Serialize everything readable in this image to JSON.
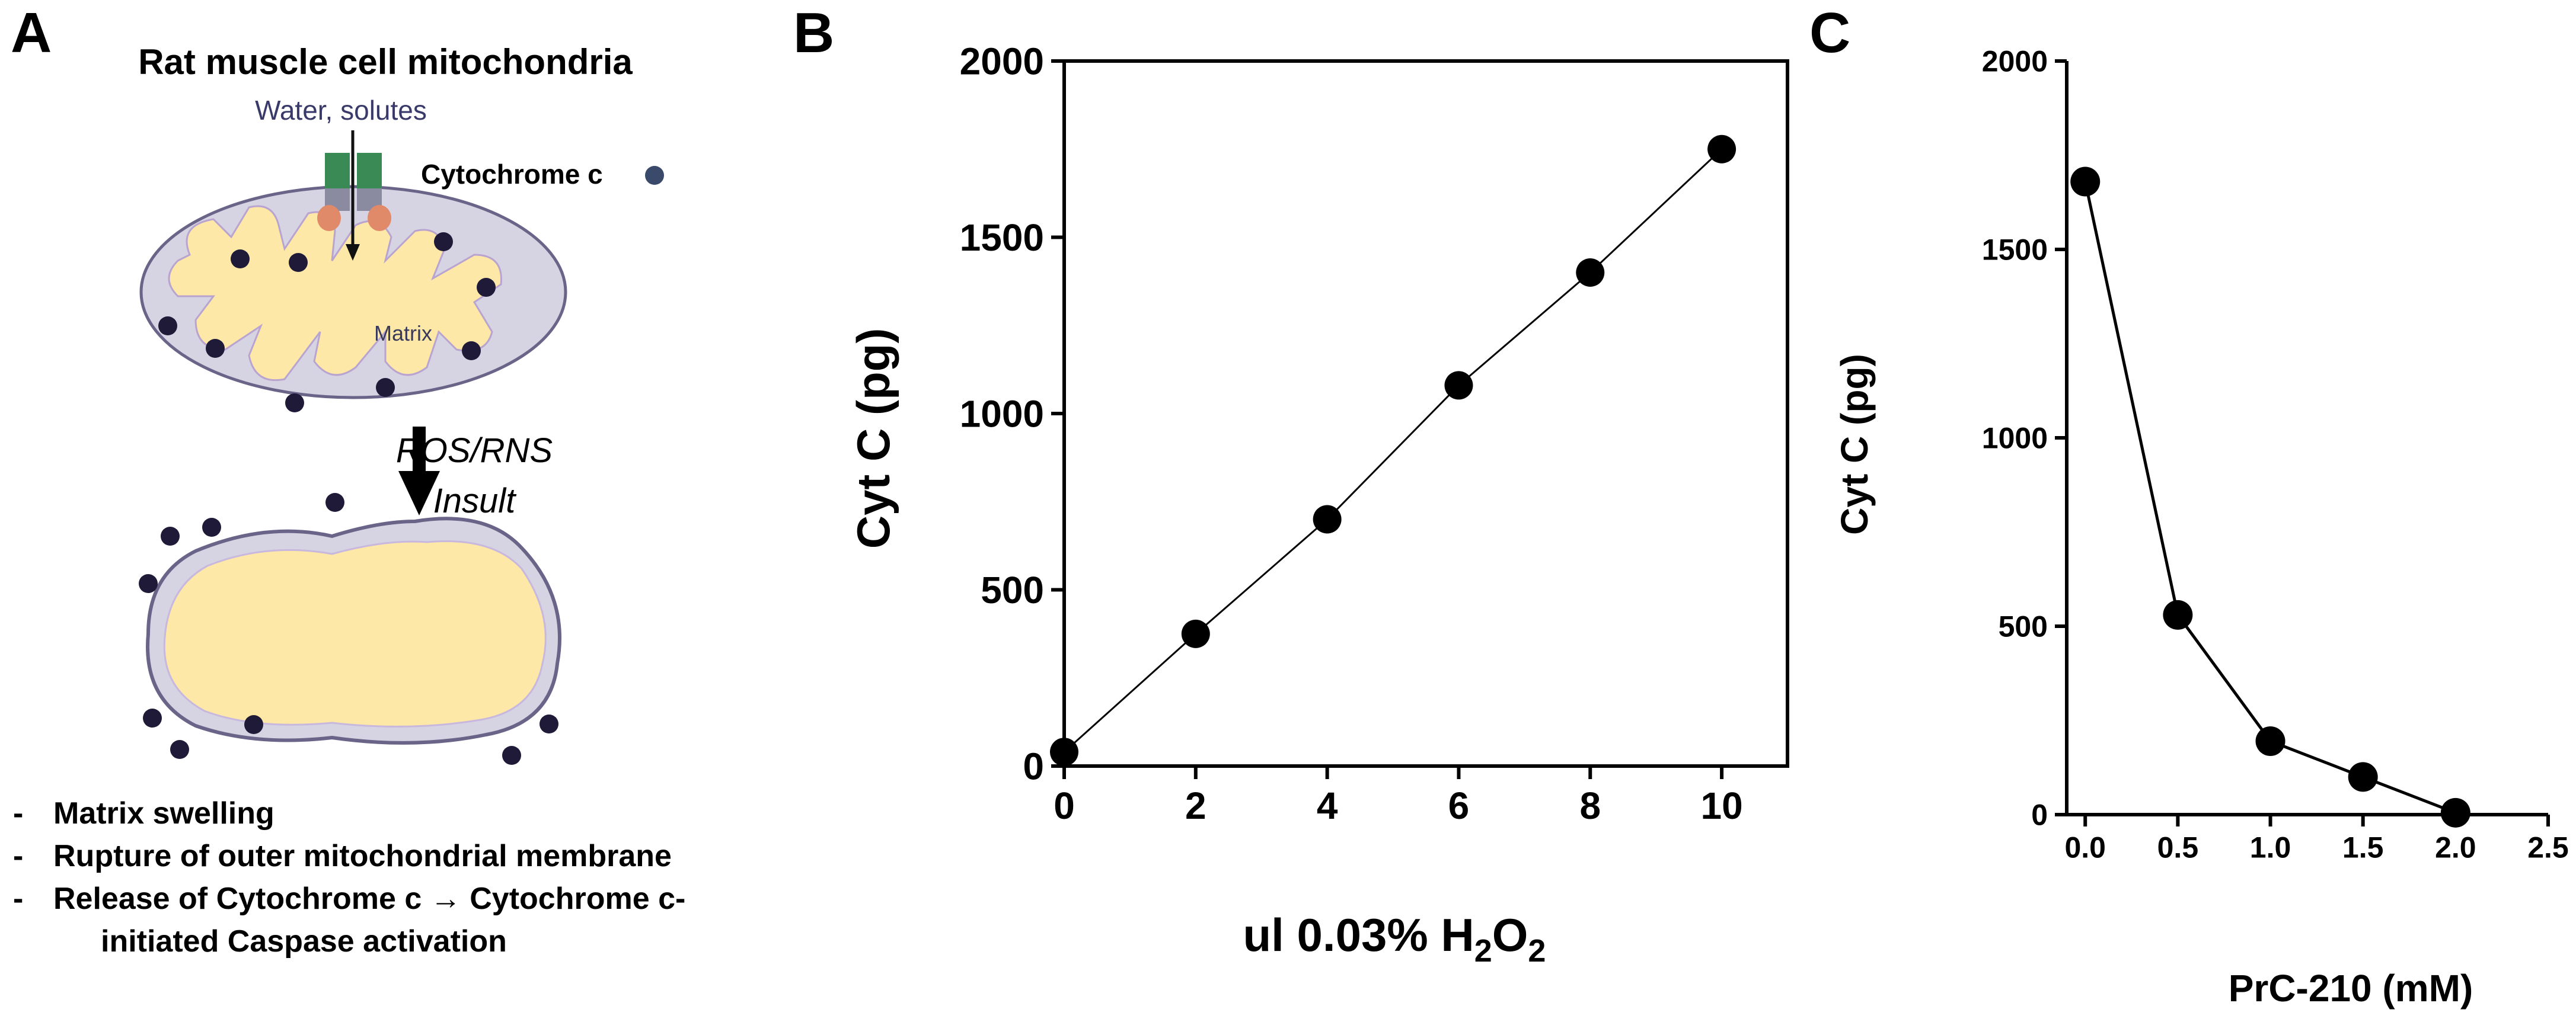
{
  "panels": {
    "a": "A",
    "b": "B",
    "c": "C"
  },
  "diagram": {
    "title": "Rat muscle cell mitochondria",
    "water_label": "Water, solutes",
    "cytochrome_label": "Cytochrome c",
    "matrix_label": "Matrix",
    "insult_line1": "ROS/RNS",
    "insult_line2": "Insult",
    "bullets": [
      {
        "marker": "-",
        "text": "Matrix swelling"
      },
      {
        "marker": "-",
        "text": "Rupture of outer mitochondrial membrane"
      },
      {
        "marker": "-",
        "text": "Release of Cytochrome c → Cytochrome c-"
      }
    ],
    "bullet_continuation": "initiated Caspase activation",
    "colors": {
      "membrane_fill": "#d6d3e2",
      "membrane_stroke": "#6a6488",
      "matrix_fill": "#fde8a8",
      "cytochrome_dot": "#1f1a38",
      "channel_green": "#3a8a55",
      "channel_orange": "#e08a6a",
      "channel_gray": "#8a8aa0"
    }
  },
  "chart_data": [
    {
      "id": "B",
      "type": "line",
      "xlabel_main": "ul 0.03% H",
      "xlabel_sub1": "2",
      "xlabel_mid": "O",
      "xlabel_sub2": "2",
      "ylabel": "Cyt C (pg)",
      "xlim": [
        0,
        11
      ],
      "ylim": [
        0,
        2000
      ],
      "xticks": [
        "0",
        "2",
        "4",
        "6",
        "8",
        "10"
      ],
      "yticks": [
        "0",
        "500",
        "1000",
        "1500",
        "2000"
      ],
      "x": [
        0,
        2,
        4,
        6,
        8,
        10
      ],
      "series": [
        {
          "values": [
            40,
            375,
            700,
            1080,
            1400,
            1750
          ]
        }
      ]
    },
    {
      "id": "C",
      "type": "line",
      "xlabel": "PrC-210 (mM)",
      "ylabel": "Cyt C (pg)",
      "xlim": [
        -0.1,
        2.5
      ],
      "ylim": [
        0,
        2000
      ],
      "xticks": [
        "0.0",
        "0.5",
        "1.0",
        "1.5",
        "2.0",
        "2.5"
      ],
      "yticks": [
        "0",
        "500",
        "1000",
        "1500",
        "2000"
      ],
      "x": [
        0.0,
        0.5,
        1.0,
        1.5,
        2.0
      ],
      "series": [
        {
          "values": [
            1680,
            530,
            195,
            100,
            5
          ]
        }
      ]
    }
  ]
}
